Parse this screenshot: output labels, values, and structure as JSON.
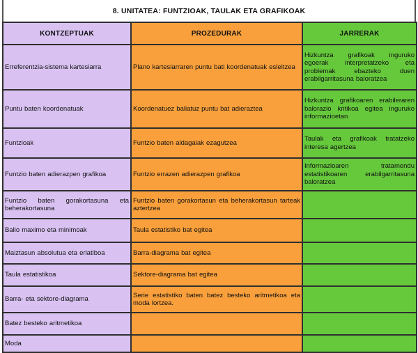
{
  "title": "8. UNITATEA: FUNTZIOAK, TAULAK ETA GRAFIKOAK",
  "colors": {
    "kontzeptuak_bg": "#d9c2f2",
    "prozedurak_bg": "#f9a03c",
    "jarrerak_bg": "#66c93c",
    "border": "#2f2f2f",
    "title_bg": "#ffffff"
  },
  "columns": [
    {
      "key": "kontzeptuak",
      "label": "KONTZEPTUAK"
    },
    {
      "key": "prozedurak",
      "label": "PROZEDURAK"
    },
    {
      "key": "jarrerak",
      "label": "JARRERAK"
    }
  ],
  "rows": [
    {
      "kontzeptuak": "Erreferentzia-sistema kartesiarra",
      "prozedurak": "Plano kartesiarraren puntu bati koordenatuak esleitzea",
      "jarrerak": "Hizkuntza grafikoak inguruko egoerak interpretatzeko eta problemak ebazteko duen erabilgarritasuna baloratzea"
    },
    {
      "kontzeptuak": "Puntu baten koordenatuak",
      "prozedurak": "Koordenatuez baliatuz puntu bat adieraztea",
      "jarrerak": "Hizkuntza grafikoaren erabileraren balorazio kritikoa egitea inguruko informazioetan"
    },
    {
      "kontzeptuak": "Funtzioak",
      "prozedurak": "Funtzio baten aldagaiak ezagutzea",
      "jarrerak": "Taulak eta grafikoak tratatzeko interesa agertzea"
    },
    {
      "kontzeptuak": "Funtzio baten adierazpen grafikoa",
      "prozedurak": "Funtzio errazen adierazpen grafikoa",
      "jarrerak": "Informazioaren tratamendu estatistikoaren erabilgarritasuna baloratzea"
    },
    {
      "kontzeptuak": "Funtzio baten gorakortasuna eta beherakortasuna",
      "prozedurak": "Funtzio baten gorakortasun eta beherakortasun tarteak aztertzea",
      "jarrerak": ""
    },
    {
      "kontzeptuak": "Balio maximo eta minimoak",
      "prozedurak": "Taula estatistiko bat egitea",
      "jarrerak": ""
    },
    {
      "kontzeptuak": "Maiztasun absolutua eta erlatiboa",
      "prozedurak": "Barra-diagrama bat egitea",
      "jarrerak": ""
    },
    {
      "kontzeptuak": "Taula estatistikoa",
      "prozedurak": "Sektore-diagrama bat egitea",
      "jarrerak": ""
    },
    {
      "kontzeptuak": "Barra- eta sektore-diagrama",
      "prozedurak": "Serie estatistiko baten batez besteko aritmetikoa eta moda lortzea.",
      "jarrerak": ""
    },
    {
      "kontzeptuak": "Batez besteko aritmetikoa",
      "prozedurak": "",
      "jarrerak": ""
    },
    {
      "kontzeptuak": "Moda",
      "prozedurak": "",
      "jarrerak": ""
    }
  ]
}
